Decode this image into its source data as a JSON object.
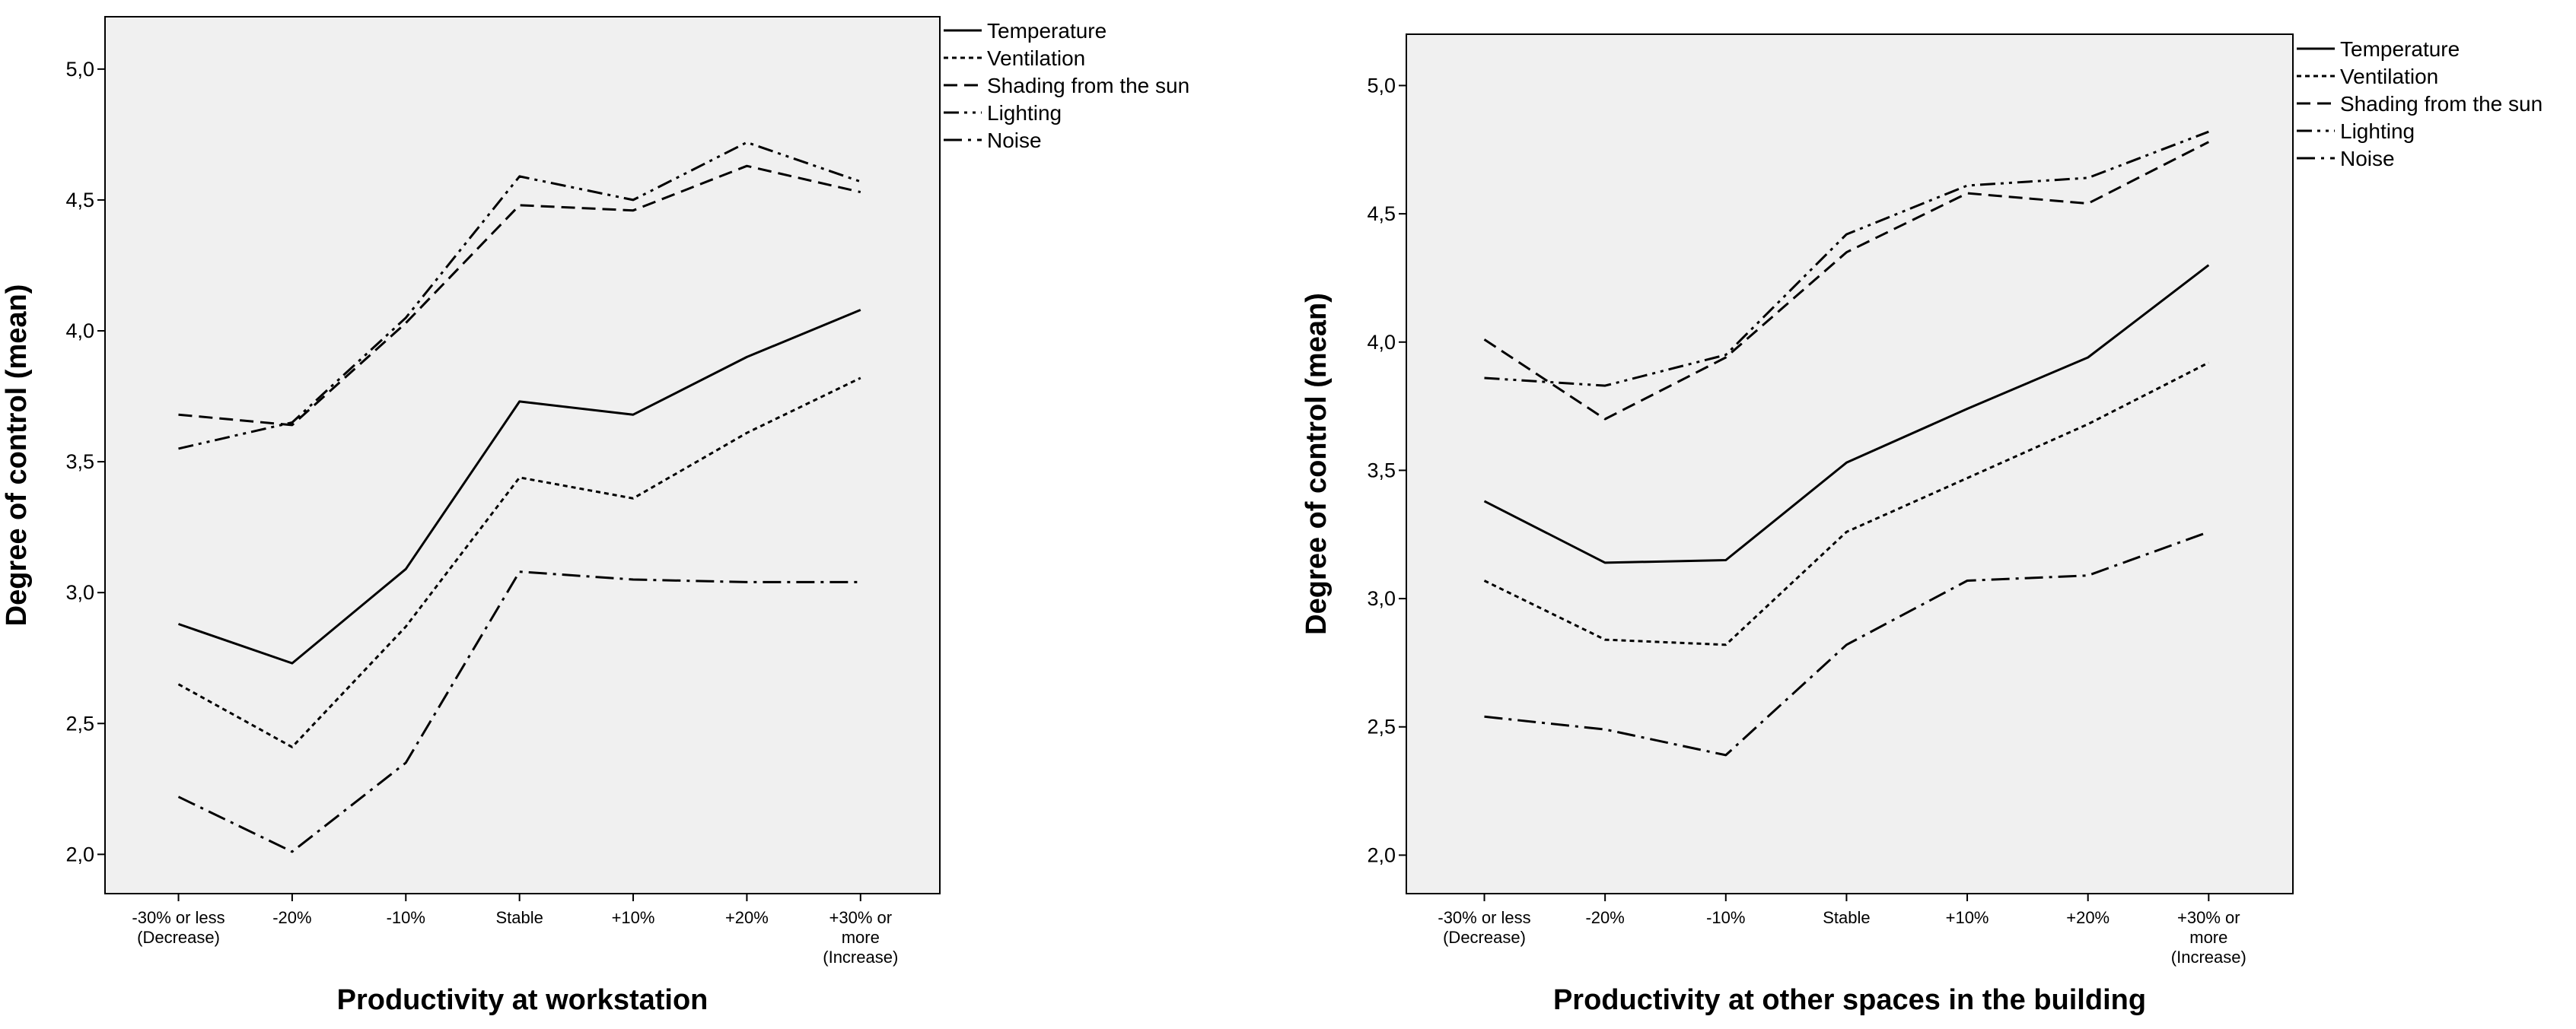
{
  "chart_data": [
    {
      "type": "line",
      "title": "",
      "xlabel": "Productivity at workstation",
      "ylabel": "Degree of control (mean)",
      "ylim": [
        1.85,
        5.2
      ],
      "yticks": [
        "2,0",
        "2,5",
        "3,0",
        "3,5",
        "4,0",
        "4,5",
        "5,0"
      ],
      "ytick_values": [
        2.0,
        2.5,
        3.0,
        3.5,
        4.0,
        4.5,
        5.0
      ],
      "categories": [
        [
          "-30% or less",
          "(Decrease)"
        ],
        [
          "-20%"
        ],
        [
          "-10%"
        ],
        [
          "Stable"
        ],
        [
          "+10%"
        ],
        [
          "+20%"
        ],
        [
          "+30% or",
          "more",
          "(Increase)"
        ]
      ],
      "legend_position": "top-right-outside",
      "series": [
        {
          "name": "Temperature",
          "dash": "solid",
          "values": [
            2.88,
            2.73,
            3.09,
            3.73,
            3.68,
            3.9,
            4.08
          ]
        },
        {
          "name": "Ventilation",
          "dash": "dotted",
          "values": [
            2.65,
            2.41,
            2.87,
            3.44,
            3.36,
            3.61,
            3.82
          ]
        },
        {
          "name": "Shading from the sun",
          "dash": "dashed",
          "values": [
            3.68,
            3.64,
            4.03,
            4.48,
            4.46,
            4.63,
            4.53
          ]
        },
        {
          "name": "Lighting",
          "dash": "dash-dot-dot",
          "values": [
            3.55,
            3.65,
            4.05,
            4.59,
            4.5,
            4.72,
            4.57
          ]
        },
        {
          "name": "Noise",
          "dash": "dash-dot",
          "values": [
            2.22,
            2.01,
            2.35,
            3.08,
            3.05,
            3.04,
            3.04
          ]
        }
      ]
    },
    {
      "type": "line",
      "title": "",
      "xlabel": "Productivity at other spaces in the building",
      "ylabel": "Degree of control (mean)",
      "ylim": [
        1.85,
        5.2
      ],
      "yticks": [
        "2,0",
        "2,5",
        "3,0",
        "3,5",
        "4,0",
        "4,5",
        "5,0"
      ],
      "ytick_values": [
        2.0,
        2.5,
        3.0,
        3.5,
        4.0,
        4.5,
        5.0
      ],
      "categories": [
        [
          "-30% or less",
          "(Decrease)"
        ],
        [
          "-20%"
        ],
        [
          "-10%"
        ],
        [
          "Stable"
        ],
        [
          "+10%"
        ],
        [
          "+20%"
        ],
        [
          "+30% or",
          "more",
          "(Increase)"
        ]
      ],
      "legend_position": "top-right-outside",
      "series": [
        {
          "name": "Temperature",
          "dash": "solid",
          "values": [
            3.38,
            3.14,
            3.15,
            3.53,
            3.74,
            3.94,
            4.3
          ]
        },
        {
          "name": "Ventilation",
          "dash": "dotted",
          "values": [
            3.07,
            2.84,
            2.82,
            3.26,
            3.47,
            3.68,
            3.92
          ]
        },
        {
          "name": "Shading from the sun",
          "dash": "dashed",
          "values": [
            4.01,
            3.7,
            3.94,
            4.35,
            4.58,
            4.54,
            4.78
          ]
        },
        {
          "name": "Lighting",
          "dash": "dash-dot-dot",
          "values": [
            3.86,
            3.83,
            3.95,
            4.42,
            4.61,
            4.64,
            4.82
          ]
        },
        {
          "name": "Noise",
          "dash": "dash-dot",
          "values": [
            2.54,
            2.49,
            2.39,
            2.82,
            3.07,
            3.09,
            3.26
          ]
        }
      ]
    }
  ]
}
